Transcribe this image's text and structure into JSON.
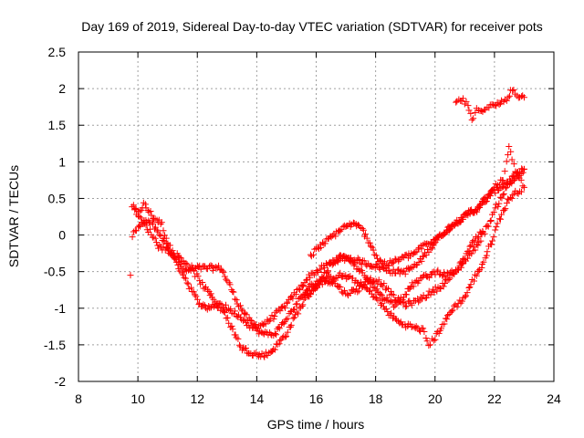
{
  "chart_data": {
    "type": "scatter",
    "title": "Day 169 of 2019, Sidereal Day-to-day VTEC variation (SDTVAR) for receiver pots",
    "xlabel": "GPS time / hours",
    "ylabel": "SDTVAR / TECUs",
    "xlim": [
      8,
      24
    ],
    "ylim": [
      -2,
      2.5
    ],
    "xticks": [
      8,
      10,
      12,
      14,
      16,
      18,
      20,
      22,
      24
    ],
    "xtick_labels": [
      "8",
      "10",
      "12",
      "14",
      "16",
      "18",
      "20",
      "22",
      "24"
    ],
    "yticks": [
      -2,
      -1.5,
      -1,
      -0.5,
      0,
      0.5,
      1,
      1.5,
      2,
      2.5
    ],
    "ytick_labels": [
      "-2",
      "-1.5",
      "-1",
      "-0.5",
      "0",
      "0.5",
      "1",
      "1.5",
      "2",
      "2.5"
    ],
    "grid": true,
    "marker": "+",
    "series": [
      {
        "name": "SDTVAR",
        "color": "#ff0000",
        "tracks": [
          [
            [
              9.75,
              -0.55
            ]
          ],
          [
            [
              9.8,
              0.4
            ],
            [
              10.0,
              0.3
            ],
            [
              10.2,
              0.42
            ],
            [
              10.5,
              0.25
            ],
            [
              10.8,
              0.15
            ],
            [
              11.0,
              -0.1
            ],
            [
              11.3,
              -0.35
            ],
            [
              11.6,
              -0.5
            ],
            [
              12.0,
              -0.45
            ],
            [
              12.4,
              -0.45
            ],
            [
              12.8,
              -0.45
            ],
            [
              13.1,
              -0.7
            ],
            [
              13.4,
              -0.95
            ],
            [
              13.7,
              -1.15
            ],
            [
              14.0,
              -1.25
            ],
            [
              14.3,
              -1.2
            ],
            [
              14.6,
              -1.1
            ],
            [
              15.0,
              -0.95
            ],
            [
              15.4,
              -0.75
            ],
            [
              15.8,
              -0.55
            ],
            [
              16.2,
              -0.45
            ],
            [
              16.6,
              -0.35
            ],
            [
              17.0,
              -0.3
            ],
            [
              17.4,
              -0.35
            ],
            [
              17.8,
              -0.4
            ],
            [
              18.2,
              -0.45
            ],
            [
              18.6,
              -0.5
            ],
            [
              19.0,
              -0.5
            ],
            [
              19.4,
              -0.4
            ],
            [
              19.8,
              -0.2
            ],
            [
              20.2,
              0.0
            ],
            [
              20.6,
              0.15
            ],
            [
              21.0,
              0.25
            ],
            [
              21.4,
              0.35
            ],
            [
              21.8,
              0.55
            ],
            [
              22.2,
              0.65
            ],
            [
              22.5,
              0.75
            ],
            [
              22.8,
              0.85
            ],
            [
              23.0,
              0.9
            ]
          ],
          [
            [
              9.8,
              0.0
            ],
            [
              10.0,
              0.1
            ],
            [
              10.3,
              0.2
            ],
            [
              10.6,
              0.1
            ],
            [
              10.9,
              -0.1
            ],
            [
              11.2,
              -0.3
            ],
            [
              11.6,
              -0.6
            ],
            [
              12.0,
              -0.9
            ],
            [
              12.3,
              -1.0
            ],
            [
              12.6,
              -0.95
            ],
            [
              12.9,
              -1.05
            ],
            [
              13.2,
              -1.3
            ],
            [
              13.5,
              -1.55
            ],
            [
              13.8,
              -1.6
            ],
            [
              14.1,
              -1.65
            ],
            [
              14.4,
              -1.62
            ],
            [
              14.7,
              -1.5
            ],
            [
              15.0,
              -1.35
            ],
            [
              15.3,
              -1.1
            ],
            [
              15.6,
              -0.9
            ],
            [
              16.0,
              -0.7
            ],
            [
              16.4,
              -0.6
            ],
            [
              16.8,
              -0.55
            ],
            [
              17.2,
              -0.6
            ],
            [
              17.6,
              -0.7
            ],
            [
              18.0,
              -0.85
            ],
            [
              18.4,
              -1.05
            ],
            [
              18.8,
              -1.2
            ],
            [
              19.2,
              -1.25
            ],
            [
              19.6,
              -1.3
            ],
            [
              19.8,
              -1.5
            ],
            [
              20.0,
              -1.4
            ],
            [
              20.3,
              -1.2
            ],
            [
              20.6,
              -1.0
            ],
            [
              21.0,
              -0.85
            ],
            [
              21.3,
              -0.6
            ],
            [
              21.6,
              -0.4
            ],
            [
              21.9,
              -0.1
            ],
            [
              22.2,
              0.25
            ],
            [
              22.5,
              0.5
            ],
            [
              22.8,
              0.6
            ],
            [
              23.0,
              0.65
            ]
          ],
          [
            [
              9.9,
              0.35
            ],
            [
              10.1,
              0.2
            ],
            [
              10.4,
              0.05
            ],
            [
              10.7,
              -0.15
            ],
            [
              11.0,
              -0.2
            ],
            [
              11.4,
              -0.3
            ],
            [
              11.8,
              -0.45
            ],
            [
              12.2,
              -0.7
            ],
            [
              12.6,
              -0.9
            ],
            [
              13.0,
              -1.0
            ],
            [
              13.4,
              -1.1
            ],
            [
              13.8,
              -1.25
            ],
            [
              14.2,
              -1.35
            ],
            [
              14.6,
              -1.35
            ],
            [
              15.0,
              -1.15
            ],
            [
              15.4,
              -0.9
            ],
            [
              15.8,
              -0.7
            ],
            [
              16.2,
              -0.6
            ],
            [
              16.6,
              -0.65
            ],
            [
              17.0,
              -0.8
            ],
            [
              17.4,
              -0.75
            ],
            [
              17.8,
              -0.6
            ],
            [
              18.2,
              -0.65
            ],
            [
              18.6,
              -0.85
            ],
            [
              19.0,
              -0.95
            ],
            [
              19.4,
              -0.9
            ],
            [
              19.8,
              -0.8
            ],
            [
              20.2,
              -0.7
            ],
            [
              20.6,
              -0.55
            ],
            [
              21.0,
              -0.35
            ],
            [
              21.4,
              -0.15
            ],
            [
              21.8,
              0.15
            ],
            [
              22.2,
              0.5
            ],
            [
              22.5,
              0.7
            ],
            [
              22.8,
              0.8
            ],
            [
              23.0,
              0.9
            ]
          ],
          [
            [
              15.8,
              -0.3
            ],
            [
              16.0,
              -0.2
            ],
            [
              16.3,
              -0.1
            ],
            [
              16.6,
              0.0
            ],
            [
              16.9,
              0.1
            ],
            [
              17.2,
              0.15
            ],
            [
              17.5,
              0.1
            ],
            [
              17.8,
              -0.1
            ],
            [
              18.1,
              -0.35
            ],
            [
              18.4,
              -0.4
            ],
            [
              18.7,
              -0.35
            ],
            [
              19.0,
              -0.3
            ],
            [
              19.3,
              -0.25
            ],
            [
              19.6,
              -0.15
            ],
            [
              19.9,
              -0.1
            ],
            [
              20.2,
              0.0
            ],
            [
              20.5,
              0.1
            ],
            [
              20.8,
              0.2
            ],
            [
              21.1,
              0.3
            ],
            [
              21.4,
              0.35
            ],
            [
              21.7,
              0.45
            ],
            [
              22.0,
              0.65
            ],
            [
              22.3,
              0.75
            ],
            [
              22.5,
              1.2
            ],
            [
              22.7,
              0.85
            ],
            [
              22.9,
              0.75
            ]
          ],
          [
            [
              15.6,
              -0.8
            ],
            [
              15.9,
              -0.75
            ],
            [
              16.2,
              -0.6
            ],
            [
              16.5,
              -0.4
            ],
            [
              16.8,
              -0.3
            ],
            [
              17.1,
              -0.35
            ],
            [
              17.4,
              -0.45
            ],
            [
              17.7,
              -0.6
            ],
            [
              18.0,
              -0.75
            ],
            [
              18.3,
              -0.85
            ],
            [
              18.6,
              -0.95
            ],
            [
              18.9,
              -0.85
            ],
            [
              19.2,
              -0.7
            ],
            [
              19.5,
              -0.6
            ],
            [
              19.8,
              -0.55
            ],
            [
              20.1,
              -0.5
            ],
            [
              20.4,
              -0.55
            ],
            [
              20.7,
              -0.5
            ],
            [
              21.0,
              -0.3
            ],
            [
              21.3,
              -0.1
            ],
            [
              21.6,
              0.05
            ]
          ],
          [
            [
              20.7,
              1.8
            ],
            [
              20.9,
              1.85
            ],
            [
              21.1,
              1.78
            ],
            [
              21.25,
              1.55
            ],
            [
              21.4,
              1.7
            ],
            [
              21.6,
              1.72
            ],
            [
              21.8,
              1.75
            ],
            [
              22.0,
              1.77
            ],
            [
              22.2,
              1.8
            ],
            [
              22.4,
              1.85
            ],
            [
              22.6,
              2.0
            ],
            [
              22.8,
              1.9
            ],
            [
              23.0,
              1.88
            ]
          ]
        ]
      }
    ]
  }
}
